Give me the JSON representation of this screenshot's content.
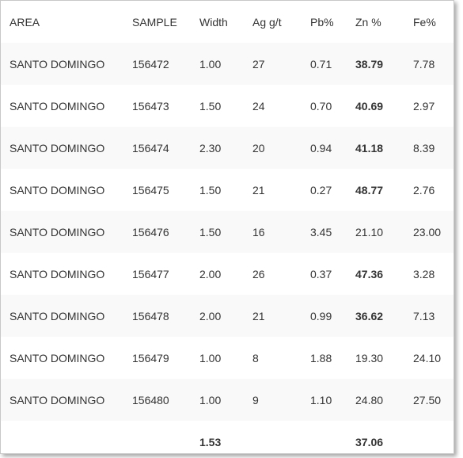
{
  "table": {
    "headers": [
      "AREA",
      "SAMPLE",
      "Width",
      "Ag g/t",
      "Pb%",
      "Zn %",
      "Fe%"
    ],
    "rows": [
      {
        "area": "SANTO DOMINGO",
        "sample": "156472",
        "width": "1.00",
        "ag": "27",
        "pb": "0.71",
        "zn": "38.79",
        "zn_bold": true,
        "fe": "7.78"
      },
      {
        "area": "SANTO DOMINGO",
        "sample": "156473",
        "width": "1.50",
        "ag": "24",
        "pb": "0.70",
        "zn": "40.69",
        "zn_bold": true,
        "fe": "2.97"
      },
      {
        "area": "SANTO DOMINGO",
        "sample": "156474",
        "width": "2.30",
        "ag": "20",
        "pb": "0.94",
        "zn": "41.18",
        "zn_bold": true,
        "fe": "8.39"
      },
      {
        "area": "SANTO DOMINGO",
        "sample": "156475",
        "width": "1.50",
        "ag": "21",
        "pb": "0.27",
        "zn": "48.77",
        "zn_bold": true,
        "fe": "2.76"
      },
      {
        "area": "SANTO DOMINGO",
        "sample": "156476",
        "width": "1.50",
        "ag": "16",
        "pb": "3.45",
        "zn": "21.10",
        "zn_bold": false,
        "fe": "23.00"
      },
      {
        "area": "SANTO DOMINGO",
        "sample": "156477",
        "width": "2.00",
        "ag": "26",
        "pb": "0.37",
        "zn": "47.36",
        "zn_bold": true,
        "fe": "3.28"
      },
      {
        "area": "SANTO DOMINGO",
        "sample": "156478",
        "width": "2.00",
        "ag": "21",
        "pb": "0.99",
        "zn": "36.62",
        "zn_bold": true,
        "fe": "7.13"
      },
      {
        "area": "SANTO DOMINGO",
        "sample": "156479",
        "width": "1.00",
        "ag": "8",
        "pb": "1.88",
        "zn": "19.30",
        "zn_bold": false,
        "fe": "24.10"
      },
      {
        "area": "SANTO DOMINGO",
        "sample": "156480",
        "width": "1.00",
        "ag": "9",
        "pb": "1.10",
        "zn": "24.80",
        "zn_bold": false,
        "fe": "27.50"
      }
    ],
    "totals": {
      "width": "1.53",
      "zn": "37.06"
    }
  }
}
